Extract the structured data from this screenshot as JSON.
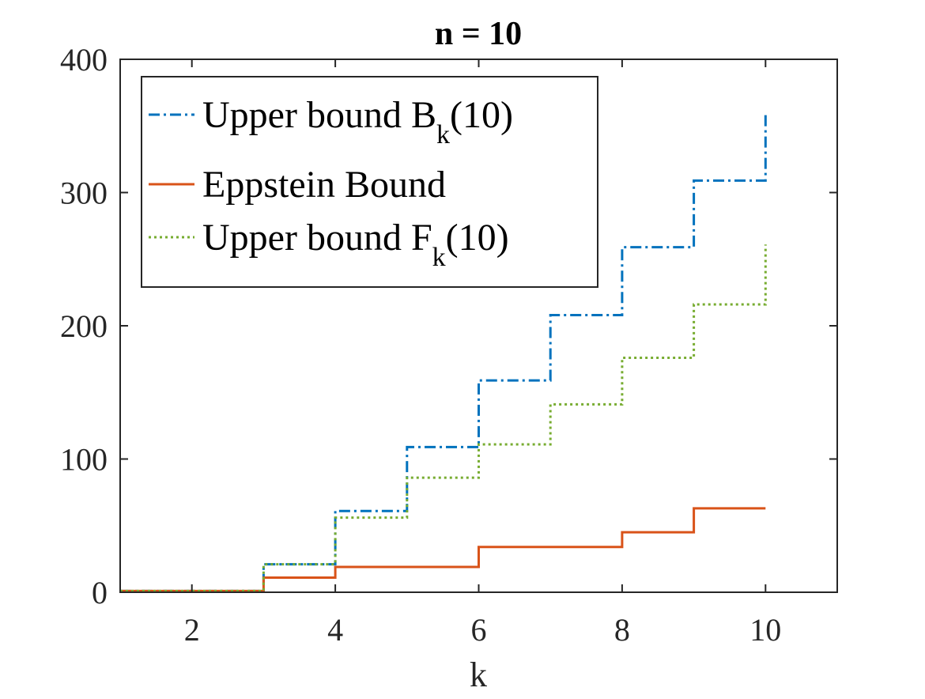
{
  "chart_data": {
    "type": "line",
    "step": true,
    "title": "n = 10",
    "xlabel": "k",
    "ylabel": "",
    "xlim": [
      1,
      11
    ],
    "ylim": [
      0,
      400
    ],
    "xticks": [
      2,
      4,
      6,
      8,
      10
    ],
    "yticks": [
      0,
      100,
      200,
      300,
      400
    ],
    "xtick_labels": [
      "2",
      "4",
      "6",
      "8",
      "10"
    ],
    "ytick_labels": [
      "0",
      "100",
      "200",
      "300",
      "400"
    ],
    "grid": false,
    "legend_position": "top-left",
    "series": [
      {
        "name": "Upper bound B",
        "subscript": "k",
        "suffix": "(10)",
        "color": "#0072BD",
        "style": "dashdot",
        "x": [
          1,
          2,
          3,
          4,
          5,
          6,
          7,
          8,
          9,
          10
        ],
        "values": [
          1,
          1,
          21,
          61,
          109,
          159,
          208,
          259,
          309,
          359
        ]
      },
      {
        "name": "Eppstein Bound",
        "color": "#D95319",
        "style": "solid",
        "x": [
          1,
          2,
          3,
          4,
          5,
          6,
          7,
          8,
          9,
          10
        ],
        "values": [
          1,
          1,
          11,
          19,
          19,
          34,
          34,
          45,
          63,
          63
        ]
      },
      {
        "name": "Upper bound F",
        "subscript": "k",
        "suffix": "(10)",
        "color": "#77AC30",
        "style": "dotted",
        "x": [
          1,
          2,
          3,
          4,
          5,
          6,
          7,
          8,
          9,
          10
        ],
        "values": [
          1,
          1,
          21,
          56,
          86,
          111,
          141,
          176,
          216,
          261
        ]
      }
    ]
  }
}
